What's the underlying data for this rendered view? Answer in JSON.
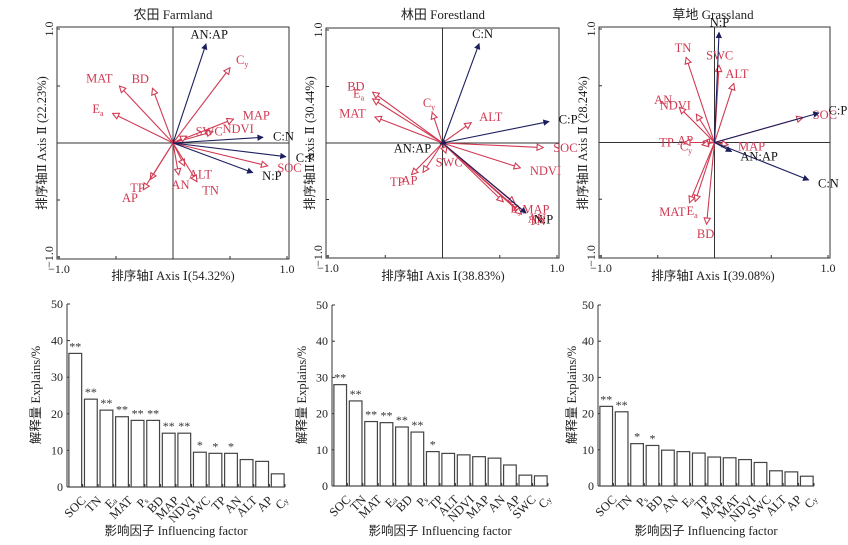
{
  "colors": {
    "environment_arrow": "#d03a52",
    "stoichiometry_arrow": "#1c1f5c",
    "text": "#222222"
  },
  "chart_data": [
    {
      "type": "scatter",
      "subtype": "rda-biplot",
      "title": "农田 Farmland",
      "xlabel": "排序轴Ⅰ Axis Ⅰ(54.32%)",
      "ylabel": "排序轴Ⅱ Axis Ⅱ (22.23%)",
      "xlim": [
        -1.0,
        1.0
      ],
      "ylim": [
        -1.0,
        1.0
      ],
      "xticks": [
        "-1.0",
        "1.0"
      ],
      "yticks": [
        "1.0",
        "-1.0"
      ],
      "response_vectors": [
        {
          "name": "AN:AP",
          "x": 0.29,
          "y": 0.87
        },
        {
          "name": "C:N",
          "x": 0.79,
          "y": 0.05
        },
        {
          "name": "C:P",
          "x": 0.99,
          "y": -0.12
        },
        {
          "name": "N:P",
          "x": 0.7,
          "y": -0.26
        }
      ],
      "explanatory_vectors": [
        {
          "name": "Cy",
          "x": 0.5,
          "y": 0.66
        },
        {
          "name": "MAT",
          "x": -0.47,
          "y": 0.5
        },
        {
          "name": "BD",
          "x": -0.18,
          "y": 0.48
        },
        {
          "name": "Ea",
          "x": -0.53,
          "y": 0.26
        },
        {
          "name": "MAP",
          "x": 0.53,
          "y": 0.21
        },
        {
          "name": "NDVI",
          "x": 0.35,
          "y": 0.1
        },
        {
          "name": "SWC",
          "x": 0.12,
          "y": 0.06
        },
        {
          "name": "SOC",
          "x": 0.83,
          "y": -0.2
        },
        {
          "name": "ALT",
          "x": 0.1,
          "y": -0.2
        },
        {
          "name": "AN",
          "x": 0.05,
          "y": -0.28
        },
        {
          "name": "TN",
          "x": 0.21,
          "y": -0.34
        },
        {
          "name": "TP",
          "x": -0.2,
          "y": -0.32
        },
        {
          "name": "AP",
          "x": -0.26,
          "y": -0.41
        }
      ]
    },
    {
      "type": "scatter",
      "subtype": "rda-biplot",
      "title": "林田 Forestland",
      "xlabel": "排序轴Ⅰ Axis Ⅰ(38.83%)",
      "ylabel": "排序轴Ⅱ Axis Ⅱ (30.44%)",
      "xlim": [
        -1.0,
        1.0
      ],
      "ylim": [
        -1.0,
        1.0
      ],
      "xticks": [
        "-1.0",
        "1.0"
      ],
      "yticks": [
        "1.0",
        "-1.0"
      ],
      "response_vectors": [
        {
          "name": "C:N",
          "x": 0.32,
          "y": 0.88
        },
        {
          "name": "C:P",
          "x": 0.93,
          "y": 0.19
        },
        {
          "name": "AN:AP",
          "x": -0.02,
          "y": -0.01
        },
        {
          "name": "N:P",
          "x": 0.73,
          "y": -0.62
        }
      ],
      "explanatory_vectors": [
        {
          "name": "BD",
          "x": -0.61,
          "y": 0.45
        },
        {
          "name": "Ea",
          "x": -0.61,
          "y": 0.39
        },
        {
          "name": "MAT",
          "x": -0.59,
          "y": 0.23
        },
        {
          "name": "Cy",
          "x": -0.09,
          "y": 0.27
        },
        {
          "name": "ALT",
          "x": 0.25,
          "y": 0.18
        },
        {
          "name": "SOC",
          "x": 0.88,
          "y": -0.04
        },
        {
          "name": "NDVI",
          "x": 0.68,
          "y": -0.22
        },
        {
          "name": "SWC",
          "x": 0.03,
          "y": -0.09
        },
        {
          "name": "TP",
          "x": -0.27,
          "y": -0.28
        },
        {
          "name": "AP",
          "x": -0.17,
          "y": -0.26
        },
        {
          "name": "MAP",
          "x": 0.63,
          "y": -0.53
        },
        {
          "name": "Ps",
          "x": 0.53,
          "y": -0.52
        },
        {
          "name": "AN",
          "x": 0.68,
          "y": -0.61
        },
        {
          "name": "TN",
          "x": 0.69,
          "y": -0.63
        }
      ]
    },
    {
      "type": "scatter",
      "subtype": "rda-biplot",
      "title": "草地 Grassland",
      "xlabel": "排序轴Ⅰ Axis Ⅰ(39.08%)",
      "ylabel": "排序轴Ⅱ Axis Ⅱ (28.24%)",
      "xlim": [
        -1.0,
        1.0
      ],
      "ylim": [
        -1.0,
        1.0
      ],
      "xticks": [
        "-1.0",
        "1.0"
      ],
      "yticks": [
        "1.0",
        "-1.0"
      ],
      "response_vectors": [
        {
          "name": "N:P",
          "x": 0.04,
          "y": 0.97
        },
        {
          "name": "C:P",
          "x": 0.92,
          "y": 0.26
        },
        {
          "name": "AN:AP",
          "x": 0.15,
          "y": -0.08
        },
        {
          "name": "C:N",
          "x": 0.83,
          "y": -0.33
        }
      ],
      "explanatory_vectors": [
        {
          "name": "TN",
          "x": -0.25,
          "y": 0.75
        },
        {
          "name": "SWC",
          "x": 0.04,
          "y": 0.68
        },
        {
          "name": "ALT",
          "x": 0.17,
          "y": 0.52
        },
        {
          "name": "NDVI",
          "x": -0.16,
          "y": 0.25
        },
        {
          "name": "AN",
          "x": -0.31,
          "y": 0.31
        },
        {
          "name": "SOC",
          "x": 0.78,
          "y": 0.22
        },
        {
          "name": "AP",
          "x": -0.1,
          "y": 0.01
        },
        {
          "name": "MAP",
          "x": 0.12,
          "y": -0.02
        },
        {
          "name": "TP",
          "x": -0.27,
          "y": 0.0
        },
        {
          "name": "Cy",
          "x": -0.11,
          "y": -0.02
        },
        {
          "name": "MAT",
          "x": -0.22,
          "y": -0.53
        },
        {
          "name": "Ea",
          "x": -0.17,
          "y": -0.52
        },
        {
          "name": "BD",
          "x": -0.07,
          "y": -0.72
        }
      ]
    },
    {
      "type": "bar",
      "ylabel": "解释量 Explains/%",
      "xlabel": "影响因子 Influencing factor",
      "ylim": [
        0,
        50
      ],
      "yticks": [
        0,
        10,
        20,
        30,
        40,
        50
      ],
      "categories": [
        "SOC",
        "TN",
        "Ea",
        "MAT",
        "Ps",
        "BD",
        "MAP",
        "NDVI",
        "SWC",
        "TP",
        "AN",
        "ALT",
        "AP",
        "Cy"
      ],
      "values": [
        36.5,
        24.0,
        21.0,
        19.2,
        18.2,
        18.2,
        14.7,
        14.7,
        9.5,
        9.2,
        9.2,
        7.5,
        7.0,
        3.6
      ],
      "significance": [
        "**",
        "**",
        "**",
        "**",
        "**",
        "**",
        "**",
        "**",
        "*",
        "*",
        "*",
        "",
        "",
        ""
      ]
    },
    {
      "type": "bar",
      "ylabel": "解释量 Explains/%",
      "xlabel": "影响因子 Influencing factor",
      "ylim": [
        0,
        50
      ],
      "yticks": [
        0,
        10,
        20,
        30,
        40,
        50
      ],
      "categories": [
        "SOC",
        "TN",
        "MAT",
        "Ea",
        "BD",
        "Ps",
        "TP",
        "ALT",
        "NDVI",
        "MAP",
        "AN",
        "AP",
        "SWC",
        "Cy"
      ],
      "values": [
        28.0,
        23.5,
        17.8,
        17.5,
        16.3,
        14.9,
        9.5,
        9.0,
        8.6,
        8.1,
        7.7,
        5.8,
        3.0,
        2.8
      ],
      "significance": [
        "**",
        "**",
        "**",
        "**",
        "**",
        "**",
        "*",
        "",
        "",
        "",
        "",
        "",
        "",
        ""
      ]
    },
    {
      "type": "bar",
      "ylabel": "解释量 Explains/%",
      "xlabel": "影响因子 Influencing factor",
      "ylim": [
        0,
        50
      ],
      "yticks": [
        0,
        10,
        20,
        30,
        40,
        50
      ],
      "categories": [
        "SOC",
        "TN",
        "Ps",
        "BD",
        "AN",
        "Ea",
        "TP",
        "MAP",
        "MAT",
        "NDVI",
        "SWC",
        "ALT",
        "AP",
        "Cy"
      ],
      "values": [
        22.0,
        20.5,
        11.7,
        11.2,
        9.9,
        9.5,
        9.1,
        8.0,
        7.8,
        7.3,
        6.5,
        4.2,
        3.9,
        2.7
      ],
      "significance": [
        "**",
        "**",
        "*",
        "*",
        "",
        "",
        "",
        "",
        "",
        "",
        "",
        "",
        "",
        ""
      ]
    }
  ]
}
